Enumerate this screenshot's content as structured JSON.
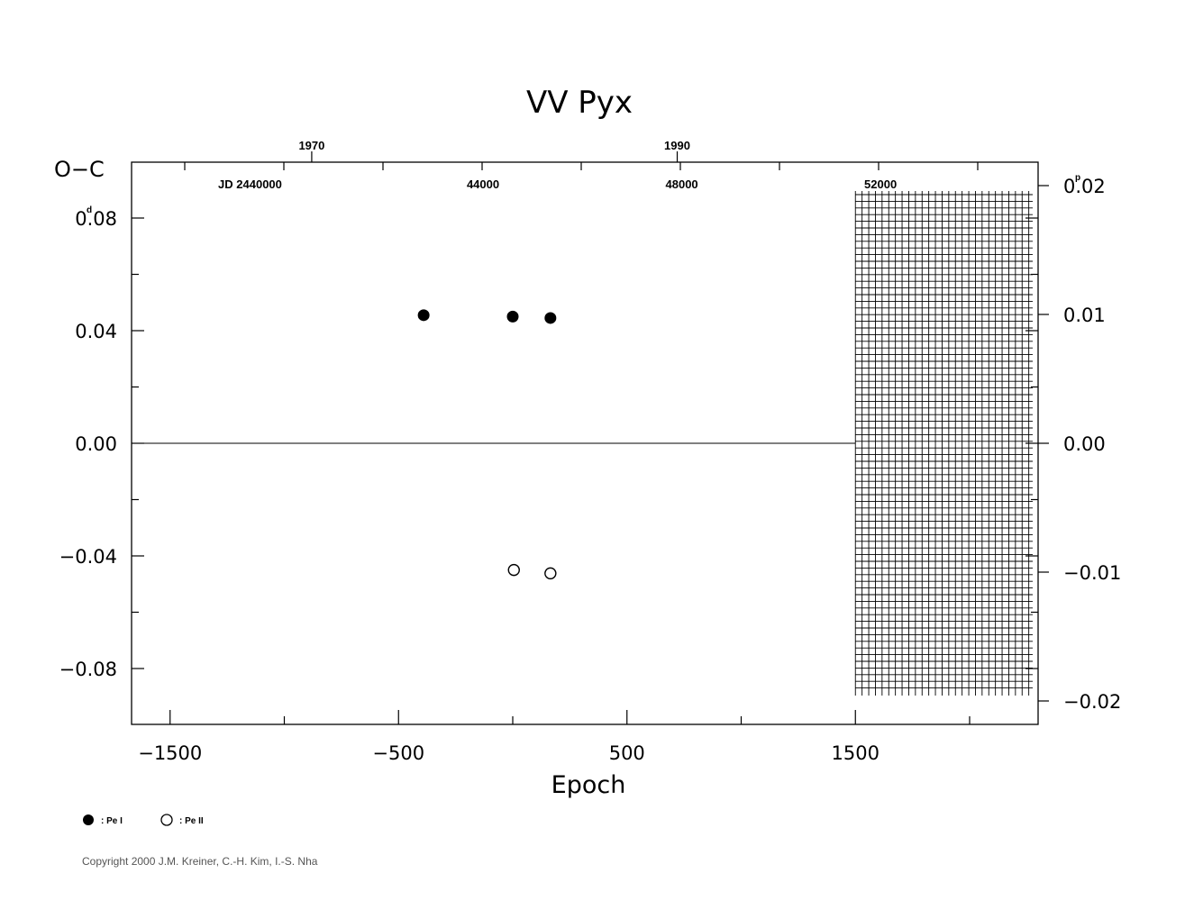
{
  "chart_data": {
    "type": "scatter",
    "title": "VV  Pyx",
    "xlabel": "Epoch",
    "ylabel": "O−C",
    "y_unit_left": "d",
    "y_unit_right": "p",
    "xlim": [
      -1680,
      2300
    ],
    "ylim": [
      -0.1,
      0.1
    ],
    "x_ticks": [
      {
        "value": -1500,
        "label": "−1500"
      },
      {
        "value": -500,
        "label": "−500"
      },
      {
        "value": 500,
        "label": "500"
      },
      {
        "value": 1500,
        "label": "1500"
      }
    ],
    "y_ticks": [
      {
        "value": 0.08,
        "label": "0.08"
      },
      {
        "value": 0.04,
        "label": "0.04"
      },
      {
        "value": 0.0,
        "label": "0.00"
      },
      {
        "value": -0.04,
        "label": "−0.04"
      },
      {
        "value": -0.08,
        "label": "−0.08"
      }
    ],
    "y2_ticks": [
      {
        "value": 0.02,
        "label": "0.02"
      },
      {
        "value": 0.01,
        "label": "0.01"
      },
      {
        "value": 0.0,
        "label": "0.00"
      },
      {
        "value": -0.01,
        "label": "−0.01"
      },
      {
        "value": -0.02,
        "label": "−0.02"
      }
    ],
    "top_year_ticks": [
      {
        "label": "1970",
        "epoch": -880
      },
      {
        "label": "1990",
        "epoch": 720
      }
    ],
    "top_jd_ticks": [
      {
        "label": "JD  2440000",
        "epoch": -1150
      },
      {
        "label": "44000",
        "epoch": -130
      },
      {
        "label": "48000",
        "epoch": 740
      },
      {
        "label": "52000",
        "epoch": 1610
      }
    ],
    "series": [
      {
        "name": ": Pe I",
        "marker": "filled-circle",
        "points": [
          {
            "x": -390,
            "y": 0.0455
          },
          {
            "x": 0,
            "y": 0.045
          },
          {
            "x": 165,
            "y": 0.0445
          }
        ]
      },
      {
        "name": ": Pe II",
        "marker": "open-circle",
        "points": [
          {
            "x": 5,
            "y": -0.045
          },
          {
            "x": 165,
            "y": -0.0462
          }
        ]
      }
    ],
    "hatched_region_x": [
      1500,
      2300
    ],
    "zero_line": true
  },
  "copyright": "Copyright 2000 J.M. Kreiner, C.-H. Kim, I.-S. Nha"
}
